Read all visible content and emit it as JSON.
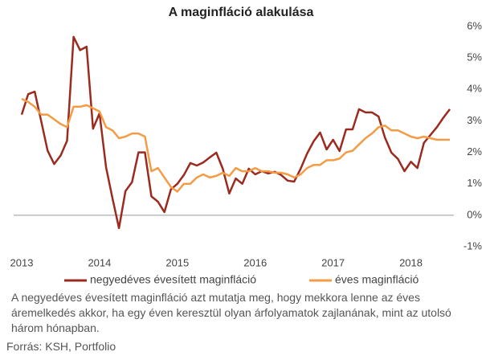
{
  "chart_data": {
    "type": "line",
    "title": "A maginfláció alakulása",
    "categories": [
      "2013",
      null,
      null,
      null,
      null,
      null,
      null,
      null,
      null,
      null,
      null,
      null,
      "2014",
      null,
      null,
      null,
      null,
      null,
      null,
      null,
      null,
      null,
      null,
      null,
      "2015",
      null,
      null,
      null,
      null,
      null,
      null,
      null,
      null,
      null,
      null,
      null,
      "2016",
      null,
      null,
      null,
      null,
      null,
      null,
      null,
      null,
      null,
      null,
      null,
      "2017",
      null,
      null,
      null,
      null,
      null,
      null,
      null,
      null,
      null,
      null,
      null,
      "2018",
      null,
      null,
      null,
      null,
      null,
      null
    ],
    "series": [
      {
        "name": "negyedéves évesített maginfláció",
        "color": "#9b2b1f",
        "values": [
          3.2,
          3.85,
          3.93,
          3.0,
          2.05,
          1.63,
          1.9,
          2.37,
          5.67,
          5.25,
          5.36,
          2.75,
          3.24,
          1.53,
          0.53,
          -0.41,
          0.77,
          1.05,
          2.0,
          2.0,
          0.6,
          0.43,
          0.1,
          0.82,
          1.0,
          1.28,
          1.66,
          1.58,
          1.68,
          1.84,
          1.99,
          1.48,
          0.69,
          1.17,
          1.0,
          1.48,
          1.3,
          1.4,
          1.33,
          1.38,
          1.28,
          1.1,
          1.07,
          1.48,
          1.96,
          2.35,
          2.63,
          2.09,
          2.4,
          2.04,
          2.73,
          2.73,
          3.37,
          3.27,
          3.27,
          3.14,
          2.47,
          1.99,
          1.79,
          1.4,
          1.7,
          1.5,
          2.3,
          2.55,
          2.8,
          3.1,
          3.37
        ]
      },
      {
        "name": "éves maginfláció",
        "color": "#f39c45",
        "values": [
          3.7,
          3.6,
          3.45,
          3.2,
          3.2,
          3.05,
          2.9,
          2.8,
          3.45,
          3.45,
          3.5,
          3.4,
          3.3,
          2.8,
          2.7,
          2.45,
          2.5,
          2.6,
          2.6,
          2.5,
          1.4,
          1.5,
          1.2,
          0.9,
          0.75,
          1.0,
          1.0,
          1.2,
          1.3,
          1.2,
          1.25,
          1.35,
          1.25,
          1.5,
          1.4,
          1.4,
          1.5,
          1.4,
          1.4,
          1.35,
          1.35,
          1.3,
          1.2,
          1.3,
          1.5,
          1.6,
          1.6,
          1.75,
          1.75,
          1.8,
          2.0,
          2.05,
          2.25,
          2.45,
          2.6,
          2.8,
          2.85,
          2.7,
          2.7,
          2.6,
          2.5,
          2.45,
          2.5,
          2.45,
          2.4,
          2.4,
          2.4
        ]
      }
    ],
    "ylim": [
      -1,
      6
    ],
    "yticks": [
      {
        "value": -1,
        "label": "-1%"
      },
      {
        "value": 0,
        "label": "0%"
      },
      {
        "value": 1,
        "label": "1%"
      },
      {
        "value": 2,
        "label": "2%"
      },
      {
        "value": 3,
        "label": "3%"
      },
      {
        "value": 4,
        "label": "4%"
      },
      {
        "value": 5,
        "label": "5%"
      },
      {
        "value": 6,
        "label": "6%"
      }
    ],
    "grid": false,
    "note": "A negyedéves évesített maginfláció azt mutatja meg, hogy mekkora lenne az éves áremelkedés akkor, ha egy éven keresztül olyan árfolyamatok zajlanának, mint az utolsó három hónapban.",
    "source": "Forrás: KSH, Portfolio"
  }
}
